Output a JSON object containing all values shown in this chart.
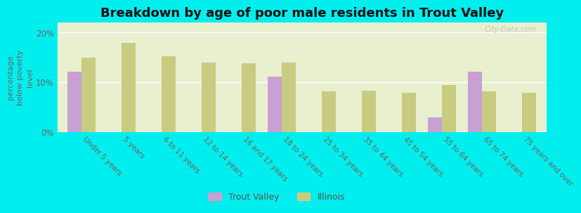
{
  "title": "Breakdown by age of poor male residents in Trout Valley",
  "ylabel": "percentage\nbelow poverty\nlevel",
  "categories": [
    "Under 5 years",
    "5 years",
    "6 to 11 years",
    "12 to 14 years",
    "16 and 17 years",
    "18 to 24 years",
    "25 to 34 years",
    "35 to 44 years",
    "45 to 54 years",
    "55 to 64 years",
    "65 to 74 years",
    "75 years and over"
  ],
  "trout_valley": [
    12.2,
    0,
    0,
    0,
    0,
    11.2,
    0,
    0,
    0,
    3.0,
    12.2,
    0
  ],
  "illinois": [
    15.0,
    18.0,
    15.2,
    14.0,
    13.8,
    14.0,
    8.2,
    8.3,
    8.0,
    9.5,
    8.2,
    8.0
  ],
  "trout_valley_color": "#c8a0d4",
  "illinois_color": "#c8cc80",
  "background_color": "#00eeee",
  "plot_bg_top": "#e8f0d0",
  "plot_bg_bottom": "#d8e8c0",
  "ylim": [
    0,
    22
  ],
  "yticks": [
    0,
    10,
    20
  ],
  "ytick_labels": [
    "0%",
    "10%",
    "20%"
  ],
  "bar_width": 0.35,
  "title_fontsize": 13,
  "legend_label_tv": "Trout Valley",
  "legend_label_il": "Illinois",
  "watermark": "City-Data.com"
}
